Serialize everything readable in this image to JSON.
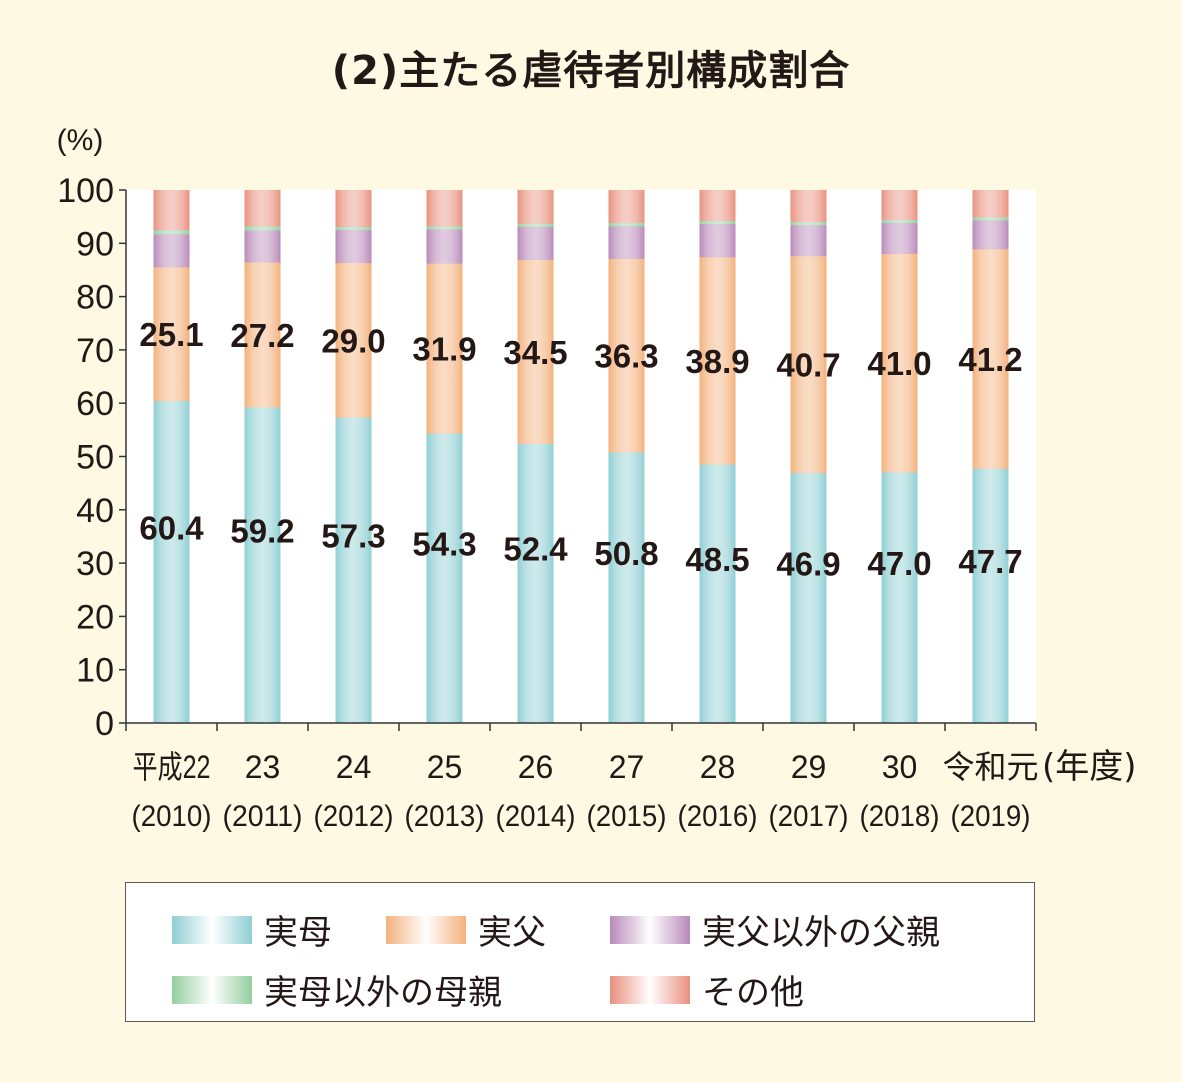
{
  "title": "(2)主たる虐待者別構成割合",
  "chart_data": {
    "type": "bar",
    "stacked": true,
    "title": "(2)主たる虐待者別構成割合",
    "ylabel": "(%)",
    "xlabel": "(年度)",
    "ylim": [
      0,
      100
    ],
    "yticks": [
      "0",
      "10",
      "20",
      "30",
      "40",
      "50",
      "60",
      "70",
      "80",
      "90",
      "100"
    ],
    "categories": [
      {
        "line1": "平成22",
        "line2": "(2010)"
      },
      {
        "line1": "23",
        "line2": "(2011)"
      },
      {
        "line1": "24",
        "line2": "(2012)"
      },
      {
        "line1": "25",
        "line2": "(2013)"
      },
      {
        "line1": "26",
        "line2": "(2014)"
      },
      {
        "line1": "27",
        "line2": "(2015)"
      },
      {
        "line1": "28",
        "line2": "(2016)"
      },
      {
        "line1": "29",
        "line2": "(2017)"
      },
      {
        "line1": "30",
        "line2": "(2018)"
      },
      {
        "line1": "令和元",
        "line2": "(2019)"
      }
    ],
    "series": [
      {
        "name": "実母",
        "color": "#8ecfd3",
        "values": [
          60.4,
          59.2,
          57.3,
          54.3,
          52.4,
          50.8,
          48.5,
          46.9,
          47.0,
          47.7
        ],
        "labels": [
          "60.4",
          "59.2",
          "57.3",
          "54.3",
          "52.4",
          "50.8",
          "48.5",
          "46.9",
          "47.0",
          "47.7"
        ]
      },
      {
        "name": "実父",
        "color": "#f3b17c",
        "values": [
          25.1,
          27.2,
          29.0,
          31.9,
          34.5,
          36.3,
          38.9,
          40.7,
          41.0,
          41.2
        ],
        "labels": [
          "25.1",
          "27.2",
          "29.0",
          "31.9",
          "34.5",
          "36.3",
          "38.9",
          "40.7",
          "41.0",
          "41.2"
        ]
      },
      {
        "name": "実父以外の父親",
        "color": "#b98ab9",
        "values": [
          6.2,
          6.0,
          6.2,
          6.4,
          6.2,
          6.1,
          6.2,
          5.8,
          5.8,
          5.4
        ]
      },
      {
        "name": "実母以外の母親",
        "color": "#93cf9e",
        "values": [
          0.8,
          0.8,
          0.6,
          0.6,
          0.6,
          0.6,
          0.6,
          0.6,
          0.6,
          0.6
        ]
      },
      {
        "name": "その他",
        "color": "#e9907e",
        "values": [
          7.5,
          6.8,
          6.9,
          6.8,
          6.3,
          6.2,
          5.8,
          6.0,
          5.6,
          5.1
        ]
      }
    ],
    "legend": "bottom"
  }
}
